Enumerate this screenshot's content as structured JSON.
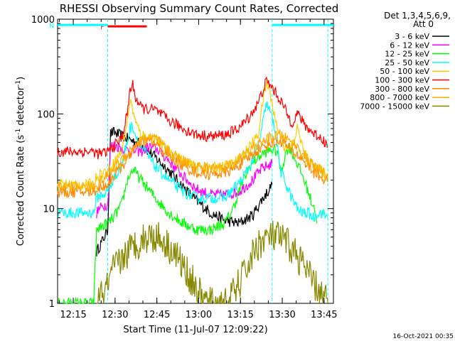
{
  "chart_data": {
    "type": "line",
    "title": "RHESSI Observing Summary Count Rates, Corrected",
    "xlabel": "Start Time (11-Jul-07 12:09:22)",
    "ylabel_main": "Corrected Count Rate (s",
    "ylabel_sup1": "-1",
    "ylabel_mid": " detector",
    "ylabel_sup2": "-1",
    "ylabel_end": ")",
    "y_scale": "log",
    "ylim": [
      1,
      1000
    ],
    "xlim_minutes": [
      0,
      99
    ],
    "x_ticks": [
      {
        "minute": 5.63,
        "label": "12:15"
      },
      {
        "minute": 20.63,
        "label": "12:30"
      },
      {
        "minute": 35.63,
        "label": "12:45"
      },
      {
        "minute": 50.63,
        "label": "13:00"
      },
      {
        "minute": 65.63,
        "label": "13:15"
      },
      {
        "minute": 80.63,
        "label": "13:30"
      },
      {
        "minute": 95.63,
        "label": "13:45"
      }
    ],
    "y_ticks": [
      {
        "value": 1,
        "label": "1"
      },
      {
        "value": 10,
        "label": "10"
      },
      {
        "value": 100,
        "label": "100"
      },
      {
        "value": 1000,
        "label": "1000"
      }
    ],
    "legend_header": [
      "Det 1,3,4,5,6,9,",
      "Att 0"
    ],
    "legend_position": "right",
    "timestamp": "16-Oct-2021 00:35",
    "flags": [
      {
        "label": "F",
        "color": "#ff0000",
        "start": 18.0,
        "end": 32.0,
        "level": 840
      },
      {
        "label": "N",
        "color": "#00ffff",
        "start": 0.0,
        "end": 18.0,
        "level": 870
      },
      {
        "label": "",
        "color": "#00ffff",
        "start": 77.0,
        "end": 99.0,
        "level": 870
      }
    ],
    "night_markers": [
      18.0,
      77.0,
      97.0
    ],
    "series": [
      {
        "name": "3 - 6 keV",
        "color": "#000000",
        "x": [
          14,
          15,
          16,
          18,
          19,
          20,
          25,
          30,
          35,
          40,
          45,
          50,
          55,
          60,
          65,
          70,
          73,
          76,
          77
        ],
        "y": [
          3.5,
          4,
          4.5,
          6,
          62,
          64,
          55,
          48,
          35,
          25,
          17,
          12,
          9,
          7.5,
          7,
          8.5,
          12,
          16,
          18
        ]
      },
      {
        "name": "6 - 12 keV",
        "color": "#ff00ff",
        "x": [
          14,
          15,
          17,
          18,
          19,
          20,
          25,
          30,
          33,
          36,
          40,
          45,
          50,
          55,
          60,
          65,
          70,
          73,
          76,
          77
        ],
        "y": [
          9,
          10,
          11,
          11,
          45,
          47,
          42,
          40,
          45,
          42,
          32,
          22,
          16,
          14,
          14,
          15,
          20,
          26,
          29,
          30
        ]
      },
      {
        "name": "12 - 25 keV",
        "color": "#00ff00",
        "x": [
          0,
          13,
          14,
          16,
          18,
          20,
          23,
          25,
          27,
          30,
          35,
          40,
          45,
          50,
          55,
          60,
          63,
          66,
          69,
          72,
          75,
          77,
          79,
          80,
          81,
          82,
          83,
          84,
          86,
          88,
          90,
          91,
          92,
          93
        ],
        "y": [
          1,
          1,
          6,
          6.5,
          7,
          8,
          11,
          20,
          26,
          20,
          13,
          9,
          7,
          6,
          6,
          7,
          10,
          18,
          28,
          35,
          40,
          42,
          40,
          25,
          30,
          40,
          45,
          40,
          30,
          22,
          15,
          12,
          11,
          7
        ]
      },
      {
        "name": "25 - 50 keV",
        "color": "#00ffff",
        "x": [
          0,
          13,
          14,
          16,
          18,
          20,
          23,
          25,
          26,
          27,
          28,
          30,
          35,
          40,
          45,
          50,
          55,
          60,
          63,
          66,
          69,
          72,
          74,
          75,
          76,
          77,
          78,
          80,
          82,
          84,
          86,
          88,
          90,
          92,
          93,
          95,
          97
        ],
        "y": [
          9,
          9,
          13,
          14,
          15,
          20,
          30,
          50,
          70,
          75,
          60,
          45,
          28,
          20,
          15,
          13,
          13,
          13,
          16,
          20,
          28,
          45,
          90,
          130,
          110,
          90,
          70,
          25,
          18,
          13,
          10,
          9,
          9,
          8,
          9,
          9,
          8
        ]
      },
      {
        "name": "50 - 100 keV",
        "color": "#ffcc00",
        "x": [
          0,
          13,
          14,
          16,
          18,
          20,
          23,
          25,
          26,
          27,
          28,
          30,
          35,
          40,
          45,
          50,
          55,
          60,
          63,
          66,
          69,
          72,
          74,
          75,
          76,
          77,
          78,
          80,
          82,
          84,
          85,
          86,
          87,
          88,
          90,
          92,
          95,
          97
        ],
        "y": [
          18,
          18,
          22,
          24,
          25,
          30,
          40,
          85,
          140,
          110,
          80,
          60,
          55,
          40,
          32,
          27,
          27,
          28,
          30,
          35,
          45,
          60,
          160,
          210,
          180,
          130,
          90,
          55,
          42,
          45,
          55,
          70,
          60,
          42,
          32,
          28,
          25,
          22
        ]
      },
      {
        "name": "100 - 300 keV",
        "color": "#ff0000",
        "x": [
          0,
          13,
          14,
          16,
          18,
          20,
          23,
          25,
          26,
          27,
          28,
          30,
          35,
          40,
          45,
          50,
          55,
          60,
          63,
          66,
          69,
          72,
          74,
          75,
          76,
          77,
          78,
          80,
          82,
          84,
          85,
          86,
          87,
          88,
          90,
          92,
          95,
          97
        ],
        "y": [
          40,
          40,
          38,
          38,
          40,
          45,
          55,
          100,
          180,
          200,
          150,
          115,
          110,
          85,
          70,
          60,
          58,
          60,
          65,
          75,
          95,
          130,
          190,
          220,
          205,
          190,
          170,
          140,
          105,
          80,
          90,
          100,
          95,
          80,
          70,
          62,
          55,
          45
        ]
      },
      {
        "name": "300 - 800 keV",
        "color": "#ff8800",
        "x": [
          0,
          13,
          14,
          16,
          18,
          20,
          23,
          25,
          27,
          30,
          33,
          35,
          40,
          45,
          50,
          55,
          60,
          63,
          66,
          69,
          72,
          74,
          76,
          78,
          80,
          82,
          84,
          86,
          88,
          90,
          92,
          95,
          97
        ],
        "y": [
          15,
          15,
          16,
          17,
          18,
          22,
          28,
          33,
          42,
          50,
          52,
          48,
          35,
          28,
          24,
          23,
          24,
          26,
          30,
          35,
          42,
          45,
          48,
          50,
          52,
          47,
          40,
          37,
          33,
          28,
          24,
          21,
          19
        ]
      },
      {
        "name": "800 - 7000 keV",
        "color": "#ffaa00",
        "x": [
          0,
          13,
          14,
          16,
          18,
          20,
          23,
          25,
          27,
          30,
          33,
          35,
          40,
          45,
          50,
          55,
          60,
          63,
          66,
          69,
          72,
          74,
          76,
          78,
          80,
          82,
          84,
          86,
          88,
          90,
          92,
          95,
          97
        ],
        "y": [
          17,
          17,
          18,
          20,
          22,
          26,
          33,
          38,
          45,
          52,
          58,
          55,
          40,
          32,
          28,
          27,
          28,
          30,
          35,
          40,
          48,
          52,
          55,
          58,
          60,
          55,
          50,
          45,
          38,
          32,
          28,
          24,
          21
        ]
      },
      {
        "name": "7000 - 15000 keV",
        "color": "#888800",
        "x": [
          14,
          16,
          18,
          20,
          22,
          24,
          26,
          28,
          30,
          32,
          34,
          36,
          38,
          40,
          42,
          44,
          46,
          48,
          50,
          52,
          54,
          56,
          58,
          60,
          62,
          64,
          66,
          68,
          70,
          72,
          74,
          76,
          78,
          80,
          82,
          84,
          86,
          88,
          90,
          92,
          94,
          96,
          97
        ],
        "y": [
          1,
          1.2,
          1.5,
          2.2,
          2.7,
          3.2,
          3.7,
          4.2,
          4.7,
          5,
          5.2,
          5,
          4.6,
          4,
          3.4,
          2.8,
          2.2,
          1.8,
          1.4,
          1.1,
          1,
          1,
          1,
          1,
          1.1,
          1.4,
          1.8,
          2.4,
          3.2,
          4.2,
          4.7,
          5,
          5,
          4.8,
          4.4,
          3.8,
          3.2,
          2.6,
          2,
          1.6,
          1.3,
          1.1,
          1
        ]
      }
    ]
  }
}
